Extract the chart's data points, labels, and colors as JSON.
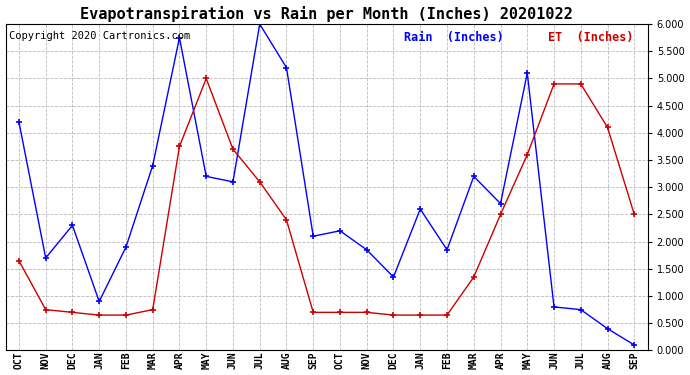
{
  "title": "Evapotranspiration vs Rain per Month (Inches) 20201022",
  "copyright": "Copyright 2020 Cartronics.com",
  "categories": [
    "OCT",
    "NOV",
    "DEC",
    "JAN",
    "FEB",
    "MAR",
    "APR",
    "MAY",
    "JUN",
    "JUL",
    "AUG",
    "SEP",
    "OCT",
    "NOV",
    "DEC",
    "JAN",
    "FEB",
    "MAR",
    "APR",
    "MAY",
    "JUN",
    "JUL",
    "AUG",
    "SEP"
  ],
  "rain": [
    4.2,
    1.7,
    2.3,
    0.9,
    1.9,
    3.4,
    5.75,
    3.2,
    3.1,
    6.0,
    5.2,
    2.1,
    2.2,
    1.85,
    1.35,
    2.6,
    1.85,
    3.2,
    2.7,
    5.1,
    0.8,
    0.75,
    0.4,
    0.1
  ],
  "et": [
    1.65,
    0.75,
    0.7,
    0.65,
    0.65,
    0.75,
    3.75,
    5.0,
    3.7,
    3.1,
    2.4,
    0.7,
    0.7,
    0.7,
    0.65,
    0.65,
    0.65,
    1.35,
    2.5,
    3.6,
    4.9,
    4.9,
    4.1,
    2.5
  ],
  "rain_color": "#0000ff",
  "et_color": "#cc0000",
  "background_color": "#ffffff",
  "grid_color": "#bbbbbb",
  "ylim": [
    0.0,
    6.0
  ],
  "yticks": [
    0.0,
    0.5,
    1.0,
    1.5,
    2.0,
    2.5,
    3.0,
    3.5,
    4.0,
    4.5,
    5.0,
    5.5,
    6.0
  ],
  "legend_rain": "Rain  (Inches)",
  "legend_et": "ET  (Inches)",
  "title_fontsize": 11,
  "copyright_fontsize": 7.5,
  "axis_fontsize": 7,
  "legend_fontsize": 8.5
}
